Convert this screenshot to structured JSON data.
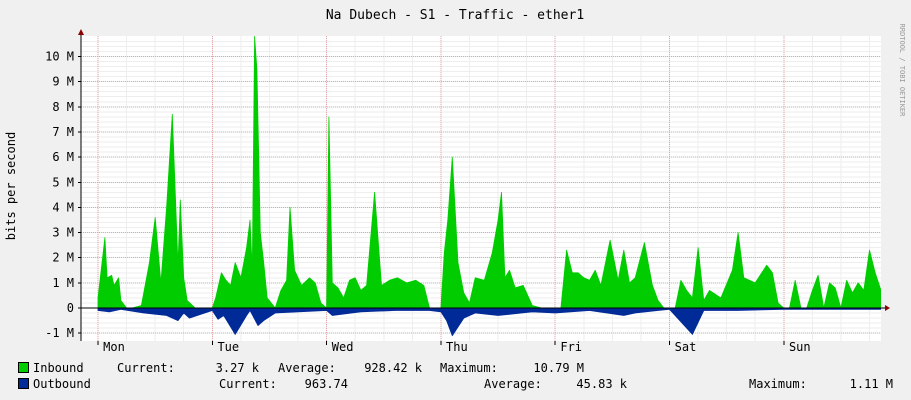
{
  "title": "Na Dubech - S1 - Traffic - ether1",
  "side_credit": "RRDTOOL / TOBI OETIKER",
  "chart_data": {
    "type": "area",
    "title": "Na Dubech - S1 - Traffic - ether1",
    "ylabel": "bits per second",
    "xlabel": "",
    "ylim": [
      -1000000,
      10800000
    ],
    "yticks": [
      -1000000,
      0,
      1000000,
      2000000,
      3000000,
      4000000,
      5000000,
      6000000,
      7000000,
      8000000,
      9000000,
      10000000
    ],
    "yticklabels": [
      "-1 M",
      "0",
      "1 M",
      "2 M",
      "3 M",
      "4 M",
      "5 M",
      "6 M",
      "7 M",
      "8 M",
      "9 M",
      "10 M"
    ],
    "xticklabels": [
      "Mon",
      "Tue",
      "Wed",
      "Thu",
      "Fri",
      "Sat",
      "Sun"
    ],
    "grid": true,
    "legend_position": "bottom",
    "colors": {
      "inbound": "#00cc00",
      "outbound": "#002a97",
      "grid": "#e9a5a5",
      "axis": "#000000",
      "arrow": "#8b0000"
    },
    "series": [
      {
        "name": "Inbound",
        "color": "#00cc00",
        "x": [
          0,
          0.06,
          0.08,
          0.12,
          0.14,
          0.18,
          0.2,
          0.25,
          0.3,
          0.38,
          0.45,
          0.5,
          0.55,
          0.6,
          0.65,
          0.7,
          0.72,
          0.75,
          0.78,
          0.85,
          0.9,
          0.95,
          1.0,
          1.03,
          1.08,
          1.12,
          1.16,
          1.2,
          1.25,
          1.3,
          1.33,
          1.35,
          1.37,
          1.39,
          1.42,
          1.45,
          1.48,
          1.55,
          1.6,
          1.65,
          1.68,
          1.72,
          1.78,
          1.85,
          1.9,
          1.95,
          2.0,
          2.02,
          2.05,
          2.1,
          2.15,
          2.2,
          2.25,
          2.3,
          2.35,
          2.42,
          2.48,
          2.55,
          2.62,
          2.7,
          2.78,
          2.85,
          2.9,
          2.95,
          3.0,
          3.03,
          3.06,
          3.1,
          3.15,
          3.2,
          3.25,
          3.3,
          3.38,
          3.45,
          3.5,
          3.53,
          3.56,
          3.6,
          3.65,
          3.72,
          3.8,
          3.88,
          3.95,
          4.0,
          4.05,
          4.1,
          4.15,
          4.2,
          4.25,
          4.3,
          4.35,
          4.4,
          4.48,
          4.55,
          4.6,
          4.65,
          4.7,
          4.78,
          4.85,
          4.9,
          4.95,
          5.0,
          5.05,
          5.1,
          5.15,
          5.2,
          5.25,
          5.3,
          5.35,
          5.45,
          5.55,
          5.6,
          5.65,
          5.75,
          5.85,
          5.9,
          5.95,
          6.0,
          6.05,
          6.1,
          6.15,
          6.2,
          6.25,
          6.3,
          6.35,
          6.4,
          6.45,
          6.5,
          6.55,
          6.6,
          6.65,
          6.7,
          6.75,
          6.8,
          6.85
        ],
        "values": [
          400000,
          2800000,
          1200000,
          1300000,
          900000,
          1200000,
          300000,
          0,
          0,
          100000,
          1800000,
          3600000,
          1000000,
          4000000,
          7700000,
          1700000,
          4300000,
          1200000,
          300000,
          0,
          0,
          0,
          0,
          400000,
          1400000,
          1100000,
          900000,
          1800000,
          1200000,
          2400000,
          3500000,
          1500000,
          10800000,
          9500000,
          3000000,
          1800000,
          400000,
          0,
          700000,
          1100000,
          4000000,
          1500000,
          900000,
          1200000,
          1000000,
          200000,
          0,
          7600000,
          1000000,
          800000,
          400000,
          1100000,
          1200000,
          700000,
          900000,
          4600000,
          900000,
          1100000,
          1200000,
          1000000,
          1100000,
          900000,
          0,
          0,
          0,
          2200000,
          3500000,
          6000000,
          1800000,
          600000,
          200000,
          1200000,
          1100000,
          2200000,
          3500000,
          4600000,
          1200000,
          1500000,
          800000,
          900000,
          100000,
          0,
          0,
          0,
          0,
          2300000,
          1400000,
          1400000,
          1200000,
          1100000,
          1500000,
          900000,
          2700000,
          1100000,
          2300000,
          1000000,
          1200000,
          2600000,
          900000,
          300000,
          0,
          0,
          0,
          1100000,
          700000,
          400000,
          2400000,
          300000,
          700000,
          400000,
          1500000,
          3000000,
          1200000,
          1000000,
          1700000,
          1400000,
          200000,
          0,
          0,
          1100000,
          0,
          0,
          700000,
          1300000,
          0,
          1000000,
          800000,
          0,
          1100000,
          600000,
          1000000,
          700000,
          2300000,
          1400000,
          700000
        ]
      },
      {
        "name": "Outbound",
        "color": "#002a97",
        "x": [
          0,
          0.1,
          0.2,
          0.4,
          0.6,
          0.7,
          0.75,
          0.8,
          1.0,
          1.05,
          1.1,
          1.2,
          1.3,
          1.33,
          1.4,
          1.45,
          1.55,
          2.0,
          2.05,
          2.3,
          2.6,
          2.9,
          3.0,
          3.05,
          3.1,
          3.2,
          3.3,
          3.5,
          3.8,
          4.0,
          4.3,
          4.6,
          4.7,
          4.9,
          5.0,
          5.2,
          5.3,
          5.6,
          6.0,
          6.5,
          6.9
        ],
        "values": [
          -100000,
          -150000,
          -50000,
          -200000,
          -300000,
          -500000,
          -200000,
          -400000,
          -100000,
          -450000,
          -300000,
          -1050000,
          -300000,
          -100000,
          -700000,
          -500000,
          -200000,
          -100000,
          -300000,
          -150000,
          -100000,
          -100000,
          -150000,
          -500000,
          -1100000,
          -400000,
          -200000,
          -300000,
          -150000,
          -200000,
          -100000,
          -300000,
          -200000,
          -100000,
          -50000,
          -1050000,
          -100000,
          -100000,
          -50000,
          -50000,
          -50000
        ]
      }
    ],
    "legend": {
      "inbound": {
        "label": "Inbound",
        "current": "3.27 k",
        "average": "928.42 k",
        "maximum": "10.79 M"
      },
      "outbound": {
        "label": "Outbound",
        "current": "963.74",
        "average": "45.83 k",
        "maximum": "1.11 M"
      }
    }
  },
  "legend_labels": {
    "current": "Current:",
    "average": "Average:",
    "maximum": "Maximum:"
  }
}
